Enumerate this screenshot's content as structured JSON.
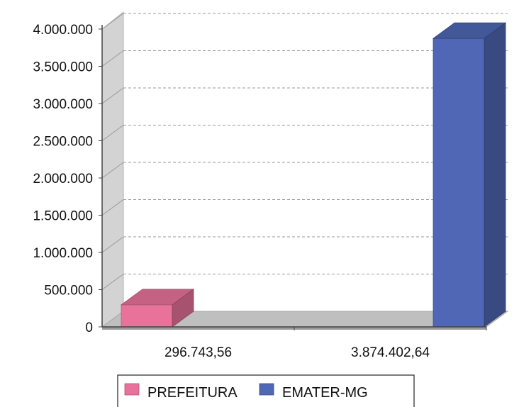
{
  "chart_data": {
    "type": "bar",
    "style": "3d-clustered-column",
    "categories": [
      "296.743,56",
      "3.874.402,64"
    ],
    "series": [
      {
        "name": "PREFEITURA",
        "values": [
          296743.56,
          null
        ],
        "color": "#e8729a"
      },
      {
        "name": "EMATER-MG",
        "values": [
          null,
          3874402.64
        ],
        "color": "#4f67b4"
      }
    ],
    "yticks": [
      "0",
      "500.000",
      "1.000.000",
      "1.500.000",
      "2.000.000",
      "2.500.000",
      "3.000.000",
      "3.500.000",
      "4.000.000"
    ],
    "ylim": [
      0,
      4000000
    ],
    "grid": true,
    "legend_position": "bottom"
  }
}
